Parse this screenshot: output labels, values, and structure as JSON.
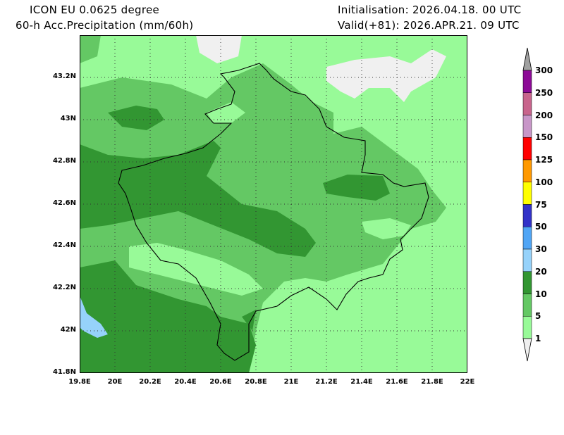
{
  "header": {
    "model": "ICON EU 0.0625 degree",
    "field": "60-h Acc.Precipitation (mm/60h)",
    "init": "Initialisation: 2026.04.18. 00 UTC",
    "valid": "Valid(+81): 2026.APR.21. 09 UTC"
  },
  "map": {
    "lon_range": [
      19.8,
      22.0
    ],
    "lat_range": [
      41.8,
      43.4
    ],
    "x_ticks": [
      "19.8E",
      "20E",
      "20.2E",
      "20.4E",
      "20.6E",
      "20.8E",
      "21E",
      "21.2E",
      "21.4E",
      "21.6E",
      "21.8E",
      "22E"
    ],
    "y_ticks": [
      "43.2N",
      "43N",
      "42.8N",
      "42.6N",
      "42.4N",
      "42.2N",
      "42N",
      "41.8N"
    ]
  },
  "colorbar": {
    "labels": [
      "300",
      "250",
      "200",
      "150",
      "125",
      "100",
      "75",
      "50",
      "30",
      "20",
      "10",
      "5",
      "1"
    ],
    "colors": [
      "#8c0a96",
      "#c8648c",
      "#c896c8",
      "#ff0000",
      "#ff9900",
      "#ffff00",
      "#3232c8",
      "#50a5f5",
      "#96d2fa",
      "#329632",
      "#64c864",
      "#98fa98"
    ],
    "over_color": "#a0a0a0",
    "under_color": "#f0f0f0"
  }
}
